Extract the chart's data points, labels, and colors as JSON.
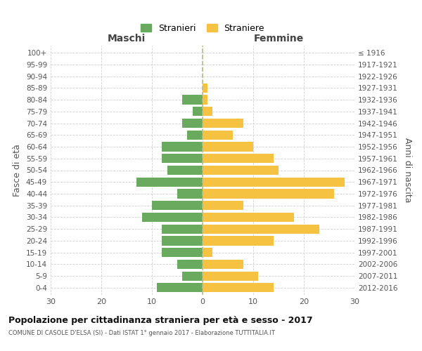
{
  "age_groups": [
    "0-4",
    "5-9",
    "10-14",
    "15-19",
    "20-24",
    "25-29",
    "30-34",
    "35-39",
    "40-44",
    "45-49",
    "50-54",
    "55-59",
    "60-64",
    "65-69",
    "70-74",
    "75-79",
    "80-84",
    "85-89",
    "90-94",
    "95-99",
    "100+"
  ],
  "birth_years": [
    "2012-2016",
    "2007-2011",
    "2002-2006",
    "1997-2001",
    "1992-1996",
    "1987-1991",
    "1982-1986",
    "1977-1981",
    "1972-1976",
    "1967-1971",
    "1962-1966",
    "1957-1961",
    "1952-1956",
    "1947-1951",
    "1942-1946",
    "1937-1941",
    "1932-1936",
    "1927-1931",
    "1922-1926",
    "1917-1921",
    "≤ 1916"
  ],
  "maschi": [
    9,
    4,
    5,
    8,
    8,
    8,
    12,
    10,
    5,
    13,
    7,
    8,
    8,
    3,
    4,
    2,
    4,
    0,
    0,
    0,
    0
  ],
  "femmine": [
    14,
    11,
    8,
    2,
    14,
    23,
    18,
    8,
    26,
    28,
    15,
    14,
    10,
    6,
    8,
    2,
    1,
    1,
    0,
    0,
    0
  ],
  "male_color": "#6aaa5e",
  "female_color": "#f5c242",
  "background_color": "#ffffff",
  "grid_color": "#d0d0d0",
  "title": "Popolazione per cittadinanza straniera per età e sesso - 2017",
  "subtitle": "COMUNE DI CASOLE D'ELSA (SI) - Dati ISTAT 1° gennaio 2017 - Elaborazione TUTTITALIA.IT",
  "ylabel_left": "Fasce di età",
  "ylabel_right": "Anni di nascita",
  "xlabel_left": "Maschi",
  "xlabel_right": "Femmine",
  "legend_male": "Stranieri",
  "legend_female": "Straniere",
  "xlim": 30
}
